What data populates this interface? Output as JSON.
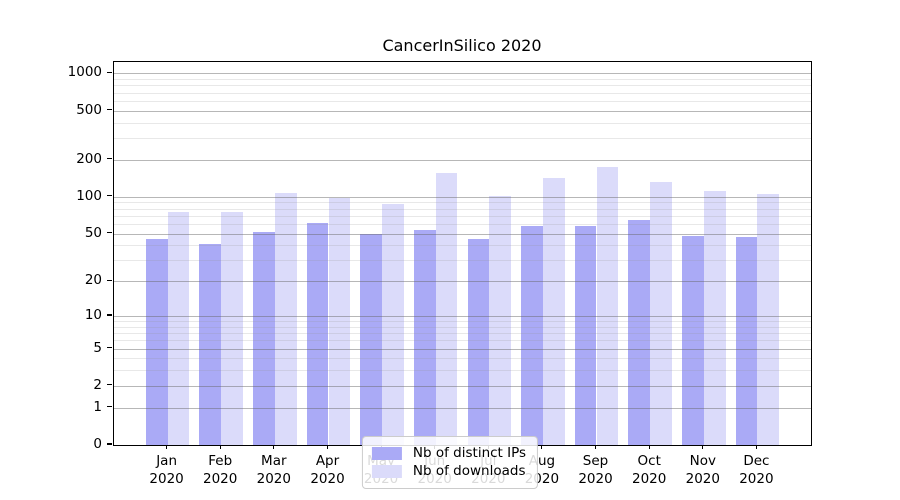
{
  "chart_data": {
    "type": "bar",
    "title": "CancerInSilico 2020",
    "categories": [
      "Jan",
      "Feb",
      "Mar",
      "Apr",
      "May",
      "Jun",
      "Jul",
      "Aug",
      "Sep",
      "Oct",
      "Nov",
      "Dec"
    ],
    "year": "2020",
    "series": [
      {
        "name": "Nb of distinct IPs",
        "color": "#aaaaf6",
        "values": [
          45,
          41,
          51,
          61,
          50,
          53,
          45,
          58,
          58,
          64,
          48,
          47
        ]
      },
      {
        "name": "Nb of downloads",
        "color": "#dbdbfa",
        "values": [
          75,
          75,
          107,
          98,
          88,
          155,
          101,
          143,
          175,
          132,
          111,
          105
        ]
      }
    ],
    "yscale": "log1p",
    "ytick_values": [
      0,
      1,
      2,
      5,
      10,
      20,
      50,
      100,
      200,
      500,
      1000
    ],
    "ytick_labels": [
      "0",
      "1",
      "2",
      "5",
      "10",
      "20",
      "50",
      "100",
      "200",
      "500",
      "1000"
    ],
    "minor_gridline_values": [
      3,
      4,
      6,
      7,
      8,
      9,
      30,
      40,
      60,
      70,
      80,
      90,
      300,
      400,
      600,
      700,
      800,
      900
    ],
    "ylim": [
      0,
      1240
    ],
    "grid": true,
    "legend_position": "lower center",
    "axis_color": "#000000",
    "major_grid_color": "#b4b4b4",
    "minor_grid_color": "#e9e9e9"
  }
}
